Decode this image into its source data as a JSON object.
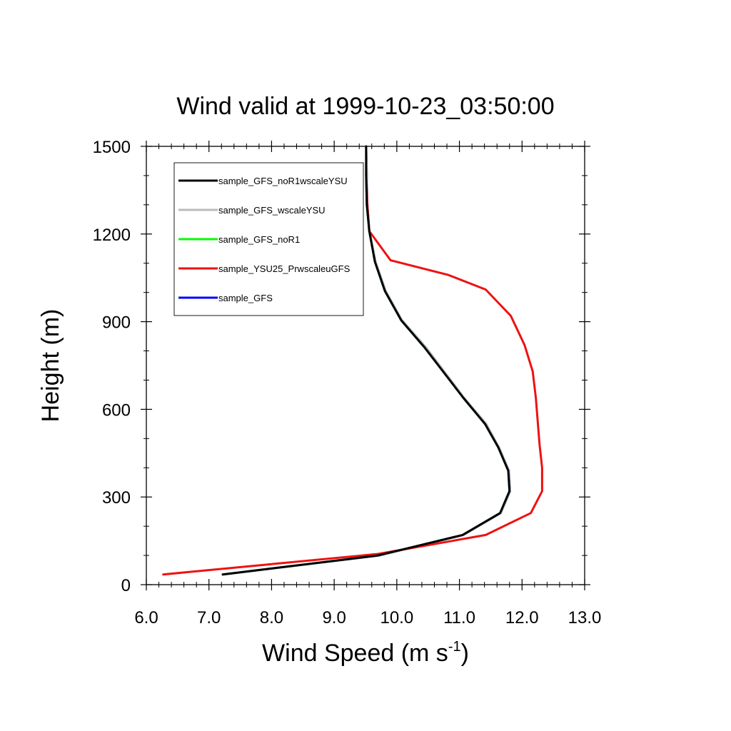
{
  "chart_data": {
    "type": "line",
    "title": "Wind valid at 1999-10-23_03:50:00",
    "xlabel": "Wind Speed (m s",
    "xlabel_sup": "-1",
    "xlabel_close": ")",
    "ylabel": "Height (m)",
    "xlim": [
      6.0,
      13.0
    ],
    "ylim": [
      0,
      1500
    ],
    "xticks": [
      6.0,
      7.0,
      8.0,
      9.0,
      10.0,
      11.0,
      12.0,
      13.0
    ],
    "xtick_labels": [
      "6.0",
      "7.0",
      "8.0",
      "9.0",
      "10.0",
      "11.0",
      "12.0",
      "13.0"
    ],
    "yticks": [
      0,
      300,
      600,
      900,
      1200,
      1500
    ],
    "ytick_labels": [
      "0",
      "300",
      "600",
      "900",
      "1200",
      "1500"
    ],
    "grid": false,
    "legend_position": "top-left",
    "series": [
      {
        "name": "sample_GFS",
        "color": "#0000ff",
        "x": [
          7.22,
          9.72,
          11.06,
          11.66,
          11.81,
          11.79,
          11.63,
          11.42,
          11.07,
          10.47,
          10.08,
          9.82,
          9.66,
          9.56,
          9.53,
          9.52,
          9.51
        ],
        "y": [
          35,
          100,
          170,
          245,
          320,
          390,
          470,
          550,
          640,
          810,
          905,
          1005,
          1105,
          1210,
          1300,
          1400,
          1500
        ]
      },
      {
        "name": "sample_GFS_noR1",
        "color": "#00ff00",
        "x": [
          7.22,
          9.71,
          11.05,
          11.65,
          11.8,
          11.78,
          11.62,
          11.41,
          11.06,
          10.45,
          10.07,
          9.81,
          9.65,
          9.56,
          9.52,
          9.51,
          9.51
        ],
        "y": [
          35,
          100,
          170,
          245,
          320,
          390,
          470,
          550,
          640,
          810,
          905,
          1005,
          1105,
          1210,
          1300,
          1400,
          1500
        ]
      },
      {
        "name": "sample_GFS_wscaleYSU",
        "color": "#bbbbbb",
        "x": [
          7.22,
          9.71,
          11.06,
          11.66,
          11.81,
          11.79,
          11.63,
          11.43,
          11.07,
          10.47,
          10.08,
          9.82,
          9.66,
          9.56,
          9.53,
          9.52,
          9.51
        ],
        "y": [
          35,
          100,
          170,
          245,
          320,
          390,
          470,
          550,
          640,
          810,
          905,
          1005,
          1105,
          1210,
          1300,
          1400,
          1500
        ]
      },
      {
        "name": "sample_YSU25_PrwscaleuGFS",
        "color": "#ee1111",
        "x": [
          6.27,
          9.7,
          11.42,
          12.14,
          12.32,
          12.32,
          12.28,
          12.25,
          12.22,
          12.17,
          12.04,
          11.82,
          11.42,
          10.82,
          9.9,
          9.56,
          9.53,
          9.51
        ],
        "y": [
          35,
          105,
          170,
          245,
          320,
          400,
          480,
          560,
          640,
          730,
          820,
          920,
          1010,
          1060,
          1110,
          1210,
          1300,
          1400
        ]
      },
      {
        "name": "sample_GFS_noR1wscaleYSU",
        "color": "#000000",
        "x": [
          7.22,
          9.7,
          11.05,
          11.65,
          11.8,
          11.78,
          11.62,
          11.41,
          11.06,
          10.45,
          10.07,
          9.81,
          9.65,
          9.56,
          9.52,
          9.51,
          9.51
        ],
        "y": [
          35,
          100,
          170,
          245,
          320,
          390,
          470,
          550,
          640,
          810,
          905,
          1005,
          1105,
          1210,
          1300,
          1400,
          1500
        ]
      }
    ],
    "legend": [
      {
        "label": "sample_GFS_noR1wscaleYSU",
        "color": "#000000"
      },
      {
        "label": "sample_GFS_wscaleYSU",
        "color": "#bbbbbb"
      },
      {
        "label": "sample_GFS_noR1",
        "color": "#00ff00"
      },
      {
        "label": "sample_YSU25_PrwscaleuGFS",
        "color": "#ee1111"
      },
      {
        "label": "sample_GFS",
        "color": "#0000ff"
      }
    ]
  }
}
